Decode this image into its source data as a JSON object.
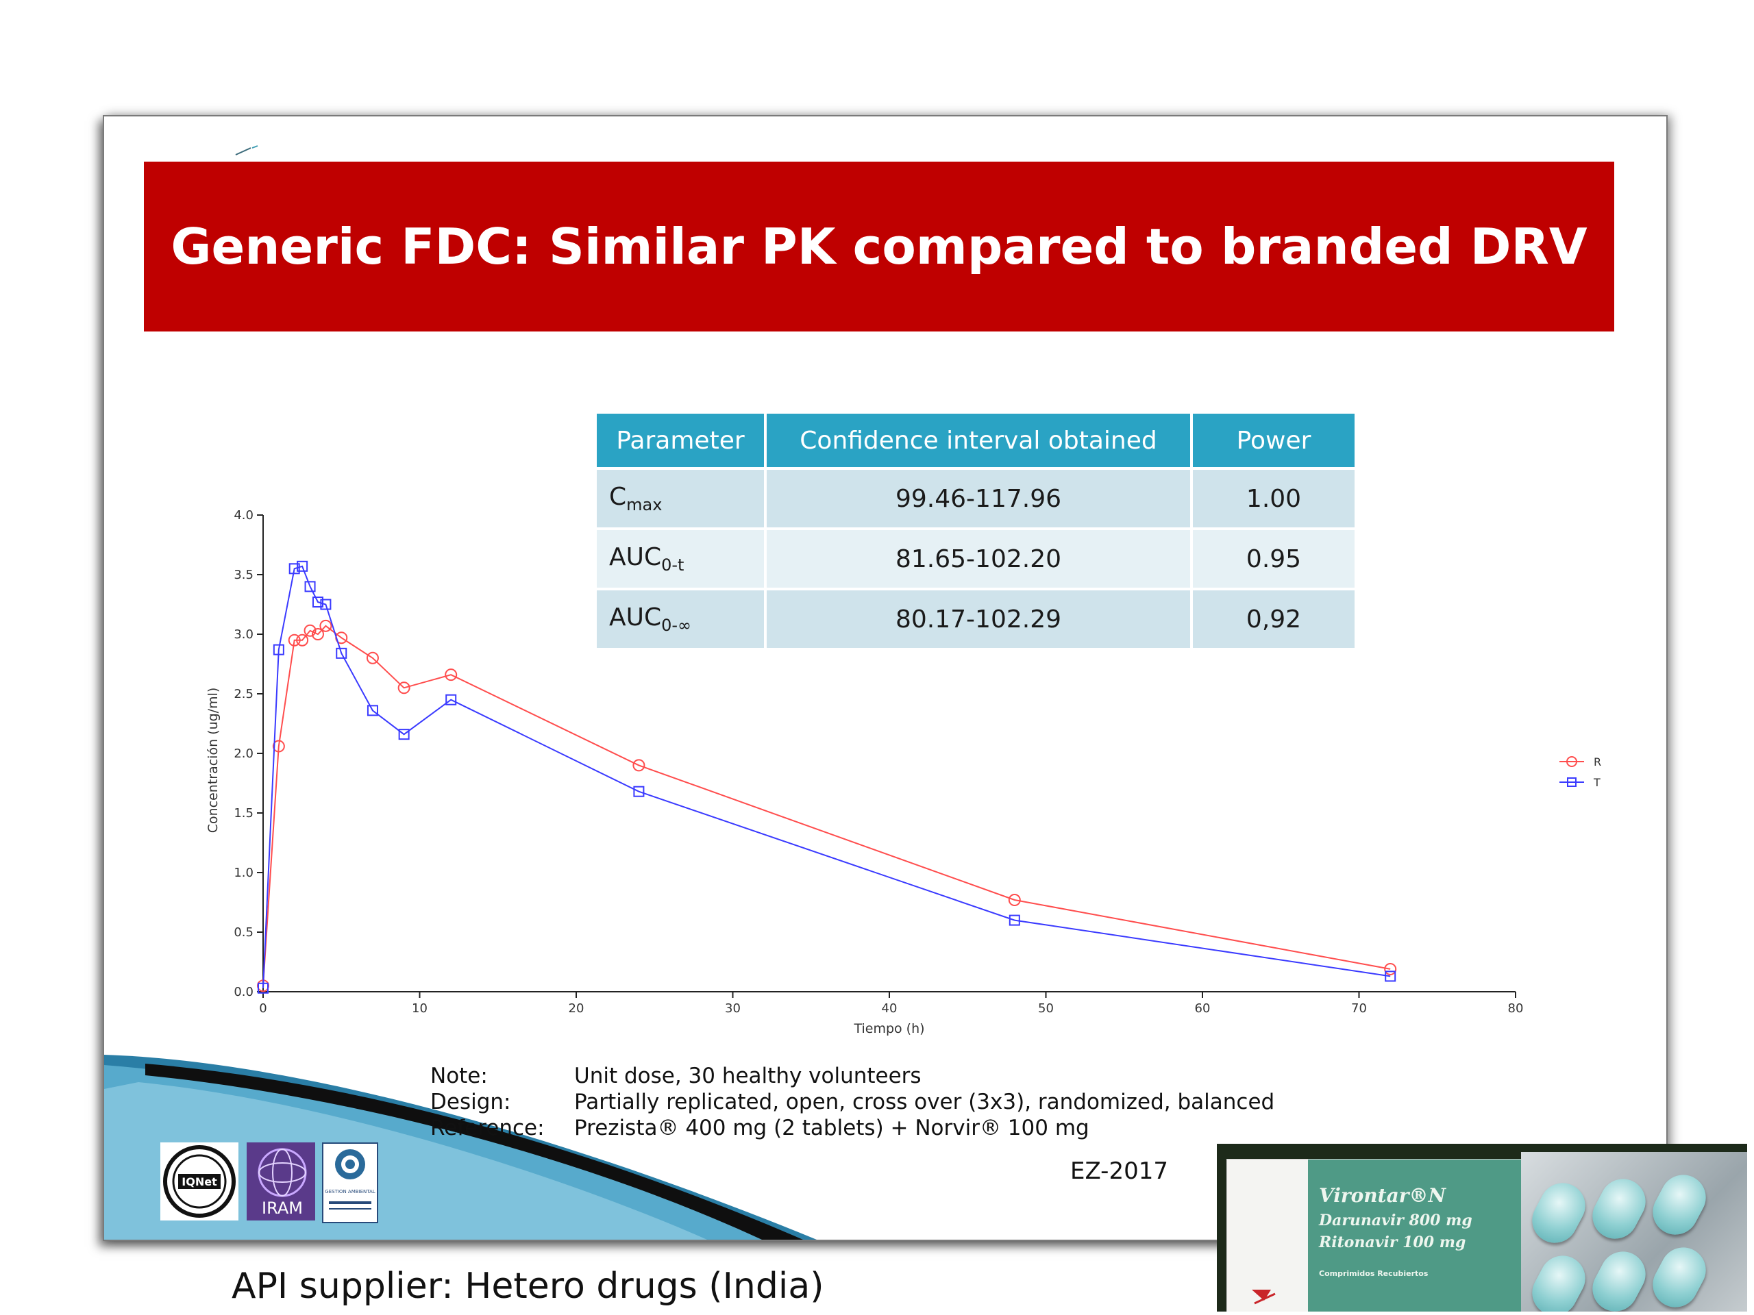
{
  "slide": {
    "title": "Generic FDC: Similar PK compared to branded DRV",
    "credit": "EZ-2017"
  },
  "table": {
    "headers": [
      "Parameter",
      "Confidence interval obtained",
      "Power"
    ],
    "rows": [
      {
        "param_main": "C",
        "param_sub": "max",
        "ci": "99.46-117.96",
        "power": "1.00"
      },
      {
        "param_main": "AUC",
        "param_sub": "0-t",
        "ci": "81.65-102.20",
        "power": "0.95"
      },
      {
        "param_main": "AUC",
        "param_sub": "0-∞",
        "ci": "80.17-102.29",
        "power": "0,92"
      }
    ]
  },
  "notes": [
    {
      "key": "Note:",
      "value": "Unit dose, 30 healthy volunteers"
    },
    {
      "key": "Design:",
      "value": "Partially replicated, open, cross over (3x3), randomized, balanced"
    },
    {
      "key": "Reference:",
      "value": "Prezista® 400 mg (2 tablets) + Norvir® 100 mg"
    }
  ],
  "logos": {
    "iqnet": "IQNet",
    "iram": "IRAM",
    "gestion": "GESTION AMBIENTAL"
  },
  "caption": "API supplier: Hetero drugs (India)",
  "product": {
    "brand": "Virontar®N",
    "line1": "Darunavir 800 mg",
    "line2": "Ritonavir 100 mg",
    "line3": "Comprimidos Recubiertos"
  },
  "chart_data": {
    "type": "line",
    "xlabel": "Tiempo (h)",
    "ylabel": "Concentración (ug/ml)",
    "xlim": [
      0,
      80
    ],
    "ylim": [
      0,
      4.0
    ],
    "x_ticks": [
      0,
      10,
      20,
      30,
      40,
      50,
      60,
      70,
      80
    ],
    "y_ticks": [
      "0.0",
      "0.5",
      "1.0",
      "1.5",
      "2.0",
      "2.5",
      "3.0",
      "3.5",
      "4.0"
    ],
    "legend_position": "right",
    "series": [
      {
        "name": "R",
        "color": "#ff4d4d",
        "marker": "circle",
        "x": [
          0,
          1,
          2,
          2.5,
          3,
          3.5,
          4,
          5,
          7,
          9,
          12,
          24,
          48,
          72
        ],
        "y": [
          0.05,
          2.06,
          2.95,
          2.95,
          3.03,
          3.0,
          3.07,
          2.97,
          2.8,
          2.55,
          2.66,
          1.9,
          0.77,
          0.19
        ]
      },
      {
        "name": "T",
        "color": "#3a3aff",
        "marker": "square",
        "x": [
          0,
          1,
          2,
          2.5,
          3,
          3.5,
          4,
          5,
          7,
          9,
          12,
          24,
          48,
          72
        ],
        "y": [
          0.03,
          2.87,
          3.55,
          3.57,
          3.4,
          3.27,
          3.25,
          2.84,
          2.36,
          2.16,
          2.45,
          1.68,
          0.6,
          0.13
        ]
      }
    ]
  }
}
